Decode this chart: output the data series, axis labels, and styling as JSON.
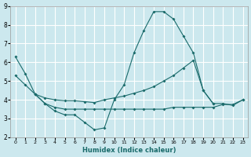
{
  "xlabel": "Humidex (Indice chaleur)",
  "bg_color": "#cce8ee",
  "grid_color": "#ffffff",
  "line_color": "#1a6b6b",
  "xlim": [
    -0.5,
    23.5
  ],
  "ylim": [
    2,
    9
  ],
  "yticks": [
    2,
    3,
    4,
    5,
    6,
    7,
    8,
    9
  ],
  "xticks": [
    0,
    1,
    2,
    3,
    4,
    5,
    6,
    7,
    8,
    9,
    10,
    11,
    12,
    13,
    14,
    15,
    16,
    17,
    18,
    19,
    20,
    21,
    22,
    23
  ],
  "series1_x": [
    0,
    1,
    2,
    3,
    4,
    5,
    6,
    7,
    8,
    9,
    10,
    11,
    12,
    13,
    14,
    15,
    16,
    17,
    18,
    19,
    20,
    21,
    22,
    23
  ],
  "series1_y": [
    6.3,
    5.4,
    4.3,
    3.8,
    3.4,
    3.2,
    3.2,
    2.8,
    2.4,
    2.5,
    4.0,
    4.8,
    6.5,
    7.7,
    8.7,
    8.7,
    8.3,
    7.4,
    6.5,
    4.5,
    3.8,
    3.8,
    3.7,
    4.0
  ],
  "series2_x": [
    0,
    1,
    2,
    3,
    4,
    5,
    6,
    7,
    8,
    9,
    10,
    11,
    12,
    13,
    14,
    15,
    16,
    17,
    18,
    19,
    20
  ],
  "series2_y": [
    5.3,
    4.8,
    4.3,
    4.1,
    4.0,
    3.95,
    3.95,
    3.9,
    3.85,
    4.0,
    4.1,
    4.2,
    4.35,
    4.5,
    4.7,
    5.0,
    5.3,
    5.7,
    6.1,
    4.5,
    3.8
  ],
  "series3_x": [
    2,
    3,
    4,
    5,
    6,
    7,
    8,
    9,
    10,
    11,
    12,
    13,
    14,
    15,
    16,
    17,
    18,
    19,
    20,
    21,
    22,
    23
  ],
  "series3_y": [
    4.3,
    3.8,
    3.6,
    3.5,
    3.5,
    3.5,
    3.5,
    3.5,
    3.5,
    3.5,
    3.5,
    3.5,
    3.5,
    3.5,
    3.6,
    3.6,
    3.6,
    3.6,
    3.6,
    3.75,
    3.75,
    4.0
  ]
}
